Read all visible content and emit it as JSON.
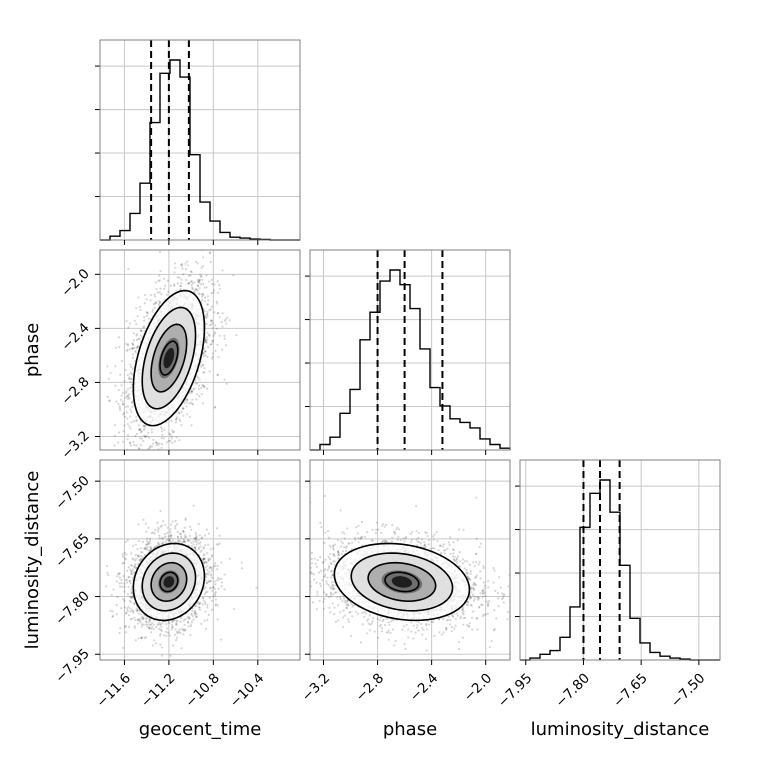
{
  "chart_data": {
    "type": "corner",
    "parameters": [
      {
        "name": "geocent_time",
        "range": [
          -11.82,
          -10.02
        ],
        "ticks": [
          -11.6,
          -11.2,
          -10.8,
          -10.4
        ],
        "tick_labels": [
          "−11.6",
          "−11.2",
          "−10.8",
          "−10.4"
        ],
        "mean": -11.2,
        "sigma": 0.16
      },
      {
        "name": "phase",
        "range": [
          -3.3,
          -1.82
        ],
        "ticks": [
          -3.2,
          -2.8,
          -2.4,
          -2.0
        ],
        "tick_labels": [
          "−3.2",
          "−2.8",
          "−2.4",
          "−2.0"
        ],
        "mean": -2.62,
        "sigma": 0.25
      },
      {
        "name": "luminosity_distance",
        "range": [
          -7.965,
          -7.445
        ],
        "ticks": [
          -7.95,
          -7.8,
          -7.65,
          -7.5
        ],
        "tick_labels": [
          "−7.95",
          "−7.80",
          "−7.65",
          "−7.50"
        ],
        "mean": -7.762,
        "sigma": 0.05
      }
    ],
    "quantiles": [
      [
        -11.36,
        -11.2,
        -11.02
      ],
      [
        -2.8,
        -2.6,
        -2.32
      ],
      [
        -7.8,
        -7.757,
        -7.706
      ]
    ],
    "histograms": [
      {
        "bin_edges": [
          -11.82,
          -11.73,
          -11.64,
          -11.55,
          -11.46,
          -11.37,
          -11.28,
          -11.19,
          -11.1,
          -11.01,
          -10.92,
          -10.83,
          -10.74,
          -10.65,
          -10.56,
          -10.47,
          -10.38,
          -10.29,
          -10.2,
          -10.11,
          -10.02
        ],
        "counts": [
          0,
          0.02,
          0.05,
          0.14,
          0.3,
          0.62,
          0.88,
          0.95,
          0.86,
          0.45,
          0.2,
          0.1,
          0.04,
          0.015,
          0.01,
          0.005,
          0.003,
          0,
          0,
          0
        ]
      },
      {
        "bin_edges": [
          -3.3,
          -3.226,
          -3.152,
          -3.078,
          -3.004,
          -2.93,
          -2.856,
          -2.782,
          -2.708,
          -2.634,
          -2.56,
          -2.486,
          -2.412,
          -2.338,
          -2.264,
          -2.19,
          -2.116,
          -2.042,
          -1.968,
          -1.894,
          -1.82
        ],
        "counts": [
          0,
          0.03,
          0.07,
          0.2,
          0.33,
          0.6,
          0.75,
          0.92,
          0.98,
          0.9,
          0.77,
          0.55,
          0.34,
          0.24,
          0.17,
          0.15,
          0.12,
          0.06,
          0.03,
          0.01
        ]
      },
      {
        "bin_edges": [
          -7.965,
          -7.939,
          -7.913,
          -7.887,
          -7.861,
          -7.835,
          -7.809,
          -7.783,
          -7.757,
          -7.731,
          -7.705,
          -7.679,
          -7.653,
          -7.627,
          -7.601,
          -7.575,
          -7.549,
          -7.523,
          -7.497,
          -7.471,
          -7.445
        ],
        "counts": [
          0,
          0.01,
          0.03,
          0.05,
          0.12,
          0.28,
          0.7,
          0.88,
          0.95,
          0.78,
          0.5,
          0.22,
          0.09,
          0.04,
          0.02,
          0.01,
          0.005,
          0,
          0,
          0
        ]
      }
    ],
    "correlations": {
      "1_0": 0.45,
      "2_0": 0.15,
      "2_1": -0.2
    },
    "n_samples": 2600,
    "contour_levels_sigma": [
      0.5,
      1.0,
      1.5,
      2.0
    ]
  }
}
